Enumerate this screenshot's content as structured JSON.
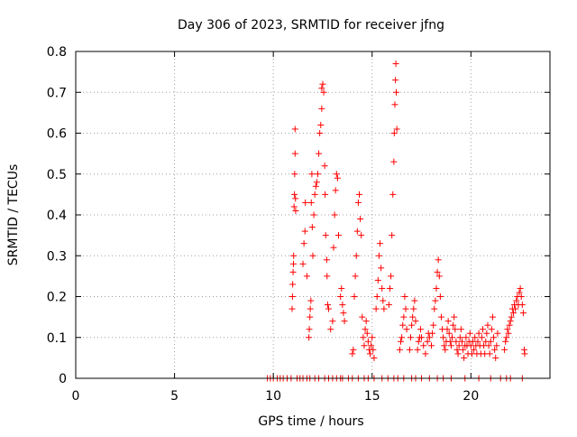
{
  "chart_data": {
    "type": "scatter",
    "title": "Day 306 of 2023, SRMTID for receiver jfng",
    "xlabel": "GPS time / hours",
    "ylabel": "SRMTID / TECUs",
    "xlim": [
      0,
      24
    ],
    "ylim": [
      0,
      0.8
    ],
    "xticks": [
      0,
      5,
      10,
      15,
      20
    ],
    "yticks": [
      0,
      0.1,
      0.2,
      0.3,
      0.4,
      0.5,
      0.6,
      0.7,
      0.8
    ],
    "xtick_labels": [
      "0",
      "5",
      "10",
      "15",
      "20"
    ],
    "ytick_labels": [
      "0",
      "0.1",
      "0.2",
      "0.3",
      "0.4",
      "0.5",
      "0.6",
      "0.7",
      "0.8"
    ],
    "grid": true,
    "marker": "+",
    "series_color": "#ff0000",
    "series": [
      {
        "name": "SRMTID",
        "points": [
          [
            9.7,
            0
          ],
          [
            9.85,
            0
          ],
          [
            10.0,
            0
          ],
          [
            10.2,
            0
          ],
          [
            10.35,
            0
          ],
          [
            10.5,
            0
          ],
          [
            10.7,
            0
          ],
          [
            10.9,
            0
          ],
          [
            11.2,
            0
          ],
          [
            11.35,
            0
          ],
          [
            11.5,
            0
          ],
          [
            11.7,
            0
          ],
          [
            11.85,
            0
          ],
          [
            12.1,
            0
          ],
          [
            12.3,
            0
          ],
          [
            12.6,
            0
          ],
          [
            12.8,
            0
          ],
          [
            13.0,
            0
          ],
          [
            13.2,
            0
          ],
          [
            13.4,
            0
          ],
          [
            13.5,
            0
          ],
          [
            13.8,
            0
          ],
          [
            14.0,
            0
          ],
          [
            14.3,
            0
          ],
          [
            14.6,
            0
          ],
          [
            14.8,
            0
          ],
          [
            15.1,
            0
          ],
          [
            15.5,
            0
          ],
          [
            15.8,
            0
          ],
          [
            16.1,
            0
          ],
          [
            16.3,
            0
          ],
          [
            16.6,
            0
          ],
          [
            17.0,
            0
          ],
          [
            17.2,
            0
          ],
          [
            17.5,
            0
          ],
          [
            17.9,
            0
          ],
          [
            18.3,
            0
          ],
          [
            18.6,
            0
          ],
          [
            19.0,
            0
          ],
          [
            19.7,
            0
          ],
          [
            20.4,
            0
          ],
          [
            21.0,
            0
          ],
          [
            21.5,
            0
          ],
          [
            21.8,
            0
          ],
          [
            22.0,
            0
          ],
          [
            22.6,
            0
          ],
          [
            10.95,
            0.17
          ],
          [
            10.97,
            0.2
          ],
          [
            10.98,
            0.23
          ],
          [
            11.0,
            0.26
          ],
          [
            11.02,
            0.28
          ],
          [
            11.03,
            0.3
          ],
          [
            11.05,
            0.42
          ],
          [
            11.07,
            0.45
          ],
          [
            11.08,
            0.5
          ],
          [
            11.1,
            0.55
          ],
          [
            11.1,
            0.61
          ],
          [
            11.12,
            0.44
          ],
          [
            11.13,
            0.41
          ],
          [
            11.5,
            0.28
          ],
          [
            11.55,
            0.33
          ],
          [
            11.6,
            0.36
          ],
          [
            11.62,
            0.43
          ],
          [
            11.7,
            0.25
          ],
          [
            11.8,
            0.1
          ],
          [
            11.82,
            0.12
          ],
          [
            11.85,
            0.15
          ],
          [
            11.87,
            0.17
          ],
          [
            11.9,
            0.19
          ],
          [
            11.92,
            0.43
          ],
          [
            11.95,
            0.5
          ],
          [
            11.97,
            0.37
          ],
          [
            12.0,
            0.3
          ],
          [
            12.05,
            0.4
          ],
          [
            12.1,
            0.45
          ],
          [
            12.15,
            0.47
          ],
          [
            12.2,
            0.48
          ],
          [
            12.25,
            0.5
          ],
          [
            12.3,
            0.55
          ],
          [
            12.35,
            0.6
          ],
          [
            12.4,
            0.62
          ],
          [
            12.45,
            0.66
          ],
          [
            12.45,
            0.71
          ],
          [
            12.5,
            0.72
          ],
          [
            12.55,
            0.7
          ],
          [
            12.6,
            0.52
          ],
          [
            12.62,
            0.45
          ],
          [
            12.65,
            0.35
          ],
          [
            12.7,
            0.29
          ],
          [
            12.72,
            0.25
          ],
          [
            12.75,
            0.18
          ],
          [
            12.8,
            0.17
          ],
          [
            12.9,
            0.12
          ],
          [
            13.0,
            0.14
          ],
          [
            13.05,
            0.32
          ],
          [
            13.1,
            0.4
          ],
          [
            13.15,
            0.46
          ],
          [
            13.2,
            0.5
          ],
          [
            13.25,
            0.49
          ],
          [
            13.3,
            0.35
          ],
          [
            13.4,
            0.2
          ],
          [
            13.45,
            0.22
          ],
          [
            13.5,
            0.18
          ],
          [
            13.55,
            0.16
          ],
          [
            13.6,
            0.14
          ],
          [
            14.0,
            0.06
          ],
          [
            14.05,
            0.07
          ],
          [
            14.1,
            0.2
          ],
          [
            14.15,
            0.25
          ],
          [
            14.2,
            0.3
          ],
          [
            14.25,
            0.36
          ],
          [
            14.3,
            0.43
          ],
          [
            14.35,
            0.45
          ],
          [
            14.4,
            0.39
          ],
          [
            14.45,
            0.35
          ],
          [
            14.5,
            0.15
          ],
          [
            14.55,
            0.1
          ],
          [
            14.6,
            0.08
          ],
          [
            14.65,
            0.12
          ],
          [
            14.7,
            0.14
          ],
          [
            14.75,
            0.11
          ],
          [
            14.8,
            0.09
          ],
          [
            14.85,
            0.07
          ],
          [
            14.9,
            0.06
          ],
          [
            14.95,
            0.08
          ],
          [
            15.0,
            0.1
          ],
          [
            15.05,
            0.07
          ],
          [
            15.1,
            0.05
          ],
          [
            15.2,
            0.17
          ],
          [
            15.25,
            0.2
          ],
          [
            15.3,
            0.24
          ],
          [
            15.35,
            0.3
          ],
          [
            15.4,
            0.33
          ],
          [
            15.45,
            0.27
          ],
          [
            15.5,
            0.22
          ],
          [
            15.55,
            0.19
          ],
          [
            15.6,
            0.17
          ],
          [
            15.85,
            0.18
          ],
          [
            15.9,
            0.22
          ],
          [
            15.95,
            0.25
          ],
          [
            16.0,
            0.35
          ],
          [
            16.05,
            0.45
          ],
          [
            16.1,
            0.53
          ],
          [
            16.12,
            0.6
          ],
          [
            16.15,
            0.67
          ],
          [
            16.18,
            0.73
          ],
          [
            16.2,
            0.77
          ],
          [
            16.22,
            0.7
          ],
          [
            16.25,
            0.61
          ],
          [
            16.4,
            0.07
          ],
          [
            16.45,
            0.09
          ],
          [
            16.5,
            0.1
          ],
          [
            16.55,
            0.13
          ],
          [
            16.6,
            0.15
          ],
          [
            16.65,
            0.2
          ],
          [
            16.7,
            0.17
          ],
          [
            16.75,
            0.12
          ],
          [
            16.9,
            0.07
          ],
          [
            16.95,
            0.1
          ],
          [
            17.0,
            0.13
          ],
          [
            17.05,
            0.15
          ],
          [
            17.1,
            0.17
          ],
          [
            17.15,
            0.19
          ],
          [
            17.2,
            0.14
          ],
          [
            17.3,
            0.07
          ],
          [
            17.35,
            0.09
          ],
          [
            17.4,
            0.1
          ],
          [
            17.45,
            0.12
          ],
          [
            17.5,
            0.1
          ],
          [
            17.6,
            0.08
          ],
          [
            17.7,
            0.06
          ],
          [
            17.8,
            0.09
          ],
          [
            17.85,
            0.11
          ],
          [
            17.9,
            0.1
          ],
          [
            18.0,
            0.08
          ],
          [
            18.05,
            0.11
          ],
          [
            18.1,
            0.13
          ],
          [
            18.15,
            0.17
          ],
          [
            18.2,
            0.19
          ],
          [
            18.25,
            0.22
          ],
          [
            18.3,
            0.26
          ],
          [
            18.35,
            0.29
          ],
          [
            18.4,
            0.25
          ],
          [
            18.45,
            0.2
          ],
          [
            18.5,
            0.15
          ],
          [
            18.55,
            0.12
          ],
          [
            18.6,
            0.1
          ],
          [
            18.65,
            0.08
          ],
          [
            18.7,
            0.07
          ],
          [
            18.75,
            0.09
          ],
          [
            18.8,
            0.12
          ],
          [
            18.85,
            0.14
          ],
          [
            18.9,
            0.11
          ],
          [
            18.95,
            0.09
          ],
          [
            19.0,
            0.08
          ],
          [
            19.05,
            0.1
          ],
          [
            19.1,
            0.13
          ],
          [
            19.15,
            0.15
          ],
          [
            19.2,
            0.12
          ],
          [
            19.25,
            0.09
          ],
          [
            19.3,
            0.07
          ],
          [
            19.35,
            0.06
          ],
          [
            19.4,
            0.08
          ],
          [
            19.45,
            0.1
          ],
          [
            19.5,
            0.12
          ],
          [
            19.55,
            0.09
          ],
          [
            19.6,
            0.07
          ],
          [
            19.65,
            0.05
          ],
          [
            19.7,
            0.08
          ],
          [
            19.75,
            0.1
          ],
          [
            19.8,
            0.08
          ],
          [
            19.85,
            0.06
          ],
          [
            19.9,
            0.09
          ],
          [
            19.95,
            0.11
          ],
          [
            20.0,
            0.08
          ],
          [
            20.05,
            0.06
          ],
          [
            20.1,
            0.09
          ],
          [
            20.15,
            0.07
          ],
          [
            20.2,
            0.1
          ],
          [
            20.25,
            0.08
          ],
          [
            20.3,
            0.06
          ],
          [
            20.35,
            0.09
          ],
          [
            20.4,
            0.11
          ],
          [
            20.45,
            0.08
          ],
          [
            20.5,
            0.06
          ],
          [
            20.55,
            0.1
          ],
          [
            20.6,
            0.12
          ],
          [
            20.65,
            0.08
          ],
          [
            20.7,
            0.06
          ],
          [
            20.75,
            0.09
          ],
          [
            20.8,
            0.11
          ],
          [
            20.85,
            0.13
          ],
          [
            20.9,
            0.08
          ],
          [
            20.95,
            0.06
          ],
          [
            21.0,
            0.09
          ],
          [
            21.05,
            0.12
          ],
          [
            21.1,
            0.15
          ],
          [
            21.15,
            0.1
          ],
          [
            21.2,
            0.07
          ],
          [
            21.25,
            0.05
          ],
          [
            21.3,
            0.08
          ],
          [
            21.35,
            0.11
          ],
          [
            21.7,
            0.07
          ],
          [
            21.75,
            0.09
          ],
          [
            21.8,
            0.1
          ],
          [
            21.85,
            0.12
          ],
          [
            21.9,
            0.11
          ],
          [
            21.95,
            0.13
          ],
          [
            22.0,
            0.14
          ],
          [
            22.05,
            0.15
          ],
          [
            22.1,
            0.17
          ],
          [
            22.15,
            0.16
          ],
          [
            22.2,
            0.18
          ],
          [
            22.25,
            0.17
          ],
          [
            22.3,
            0.19
          ],
          [
            22.35,
            0.2
          ],
          [
            22.4,
            0.18
          ],
          [
            22.45,
            0.21
          ],
          [
            22.5,
            0.22
          ],
          [
            22.55,
            0.2
          ],
          [
            22.6,
            0.18
          ],
          [
            22.65,
            0.16
          ],
          [
            22.7,
            0.07
          ],
          [
            22.72,
            0.06
          ]
        ]
      }
    ]
  }
}
